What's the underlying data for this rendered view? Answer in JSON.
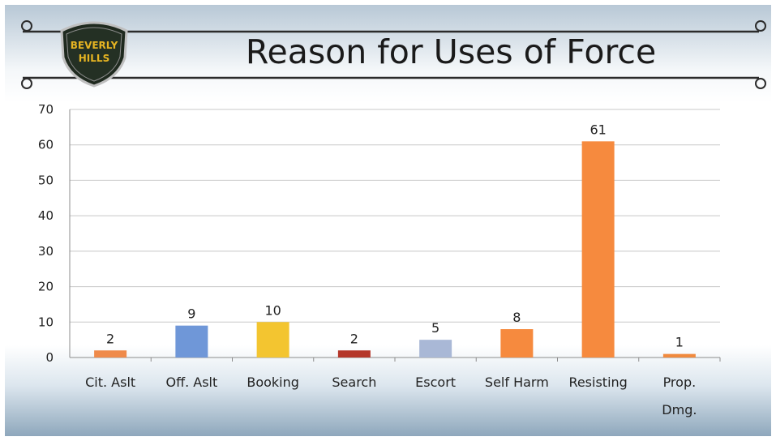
{
  "slide": {
    "title": "Reason for Uses of Force",
    "logo": {
      "line1": "BEVERLY",
      "line2": "HILLS",
      "accent": "#e6b422"
    }
  },
  "chart_data": {
    "type": "bar",
    "title": "",
    "xlabel": "",
    "ylabel": "",
    "ylim": [
      0,
      70
    ],
    "yticks": [
      0,
      10,
      20,
      30,
      40,
      50,
      60,
      70
    ],
    "grid": true,
    "legend": "none",
    "categories": [
      [
        "Cit. Aslt"
      ],
      [
        "Off. Aslt"
      ],
      [
        "Booking"
      ],
      [
        "Search"
      ],
      [
        "Escort"
      ],
      [
        "Self Harm"
      ],
      [
        "Resisting"
      ],
      [
        "Prop.",
        "Dmg."
      ]
    ],
    "values": [
      2,
      9,
      10,
      2,
      5,
      8,
      61,
      1
    ],
    "colors": [
      "#ef8a4a",
      "#6f97d8",
      "#f3c530",
      "#b5372a",
      "#a9b8d6",
      "#f68a3e",
      "#f68a3e",
      "#f08a3e"
    ]
  }
}
